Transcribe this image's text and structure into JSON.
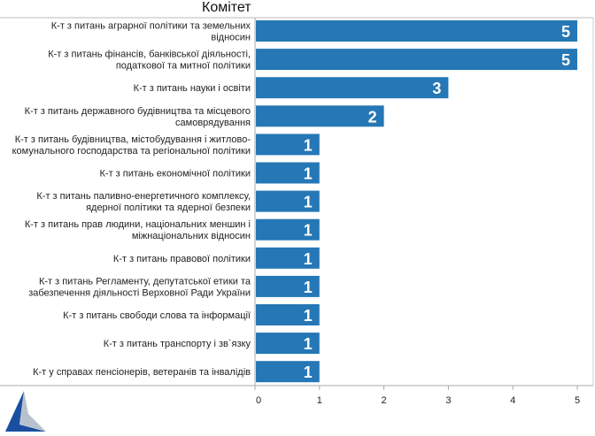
{
  "chart_data": {
    "type": "bar",
    "orientation": "horizontal",
    "title": "Комітет",
    "categories": [
      [
        "К-т з питань аграрної політики та земельних",
        "відносин"
      ],
      [
        "К-т з питань фінансів, банківської діяльності,",
        "податкової та митної політики"
      ],
      [
        "К-т з питань науки і освіти"
      ],
      [
        "К-т з питань державного будівництва та місцевого",
        "самоврядування"
      ],
      [
        "К-т з питань будівництва, містобудування і житлово-",
        "комунального господарства та регіональної політики"
      ],
      [
        "К-т з питань економічної політики"
      ],
      [
        "К-т з питань паливно-енергетичного комплексу,",
        "ядерної політики та ядерної безпеки"
      ],
      [
        "К-т з питань прав людини, національних меншин і",
        "міжнаціональних відносин"
      ],
      [
        "К-т з питань правової політики"
      ],
      [
        "К-т з питань Регламенту, депутатської етики та",
        "забезпечення діяльності Верховної Ради України"
      ],
      [
        "К-т з питань свободи слова та інформації"
      ],
      [
        "К-т з питань транспорту і зв`язку"
      ],
      [
        "К-т у справах пенсіонерів, ветеранів та інвалідів"
      ]
    ],
    "values": [
      5,
      5,
      3,
      2,
      1,
      1,
      1,
      1,
      1,
      1,
      1,
      1,
      1
    ],
    "xlim": [
      0,
      5
    ],
    "xticks": [
      0,
      1,
      2,
      3,
      4,
      5
    ],
    "data_labels": true,
    "grid": false,
    "bar_color": "#2577b5"
  }
}
